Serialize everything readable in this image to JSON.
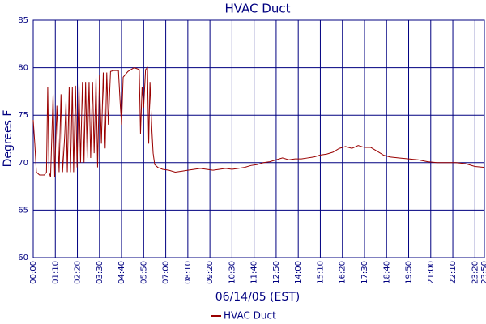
{
  "chart_data": {
    "type": "line",
    "title": "HVAC Duct",
    "x_label": "06/14/05 (EST)",
    "y_label": "Degrees F",
    "xlim": [
      0,
      1430
    ],
    "xticks": [
      {
        "value": 0,
        "label": "00:00"
      },
      {
        "value": 70,
        "label": "01:10"
      },
      {
        "value": 140,
        "label": "02:20"
      },
      {
        "value": 210,
        "label": "03:30"
      },
      {
        "value": 280,
        "label": "04:40"
      },
      {
        "value": 350,
        "label": "05:50"
      },
      {
        "value": 420,
        "label": "07:00"
      },
      {
        "value": 490,
        "label": "08:10"
      },
      {
        "value": 560,
        "label": "09:20"
      },
      {
        "value": 630,
        "label": "10:30"
      },
      {
        "value": 700,
        "label": "11:40"
      },
      {
        "value": 770,
        "label": "12:50"
      },
      {
        "value": 840,
        "label": "14:00"
      },
      {
        "value": 910,
        "label": "15:10"
      },
      {
        "value": 980,
        "label": "16:20"
      },
      {
        "value": 1050,
        "label": "17:30"
      },
      {
        "value": 1120,
        "label": "18:40"
      },
      {
        "value": 1190,
        "label": "19:50"
      },
      {
        "value": 1260,
        "label": "21:00"
      },
      {
        "value": 1330,
        "label": "22:10"
      },
      {
        "value": 1400,
        "label": "23:20"
      },
      {
        "value": 1430,
        "label": "23:50"
      }
    ],
    "ylim": [
      60,
      85
    ],
    "yticks": [
      60,
      65,
      70,
      75,
      80,
      85
    ],
    "grid": true,
    "legend": "bottom",
    "x": [
      0,
      5,
      10,
      20,
      35,
      42,
      46,
      50,
      55,
      63,
      68,
      75,
      82,
      88,
      93,
      100,
      104,
      108,
      114,
      118,
      124,
      128,
      134,
      139,
      145,
      150,
      156,
      161,
      166,
      171,
      177,
      182,
      188,
      193,
      199,
      204,
      210,
      216,
      222,
      228,
      233,
      238,
      245,
      255,
      270,
      276,
      280,
      285,
      300,
      320,
      336,
      340,
      345,
      350,
      356,
      362,
      366,
      370,
      376,
      380,
      385,
      395,
      410,
      430,
      450,
      470,
      490,
      510,
      530,
      550,
      570,
      590,
      610,
      630,
      650,
      670,
      690,
      710,
      730,
      750,
      770,
      790,
      810,
      830,
      850,
      870,
      890,
      910,
      930,
      950,
      970,
      990,
      1010,
      1030,
      1050,
      1070,
      1090,
      1110,
      1130,
      1160,
      1190,
      1220,
      1250,
      1280,
      1310,
      1340,
      1370,
      1400,
      1430
    ],
    "series": [
      {
        "name": "HVAC Duct",
        "color": "#990000",
        "values": [
          74.5,
          72,
          69,
          68.7,
          68.7,
          69,
          78,
          69,
          68.5,
          77.2,
          68.5,
          76,
          69,
          77.2,
          69,
          73,
          76.5,
          69,
          78,
          69,
          78,
          69,
          78.1,
          69.5,
          78.3,
          70,
          78.5,
          70,
          78.5,
          70.5,
          78.5,
          70.5,
          78.5,
          71,
          79,
          69.5,
          79.2,
          72,
          79.5,
          71.5,
          79.5,
          74,
          79.6,
          79.7,
          79.7,
          76,
          74,
          79,
          79.6,
          80,
          79.8,
          73,
          78,
          75.8,
          79.8,
          80,
          72,
          78.5,
          73.5,
          71,
          69.8,
          69.5,
          69.3,
          69.2,
          69,
          69.1,
          69.2,
          69.3,
          69.4,
          69.3,
          69.2,
          69.3,
          69.4,
          69.3,
          69.4,
          69.5,
          69.7,
          69.8,
          70,
          70.1,
          70.3,
          70.5,
          70.3,
          70.4,
          70.4,
          70.5,
          70.6,
          70.8,
          70.9,
          71.1,
          71.5,
          71.7,
          71.5,
          71.8,
          71.6,
          71.6,
          71.2,
          70.8,
          70.6,
          70.5,
          70.4,
          70.3,
          70.1,
          70,
          70,
          70,
          69.9,
          69.6,
          69.5
        ]
      }
    ]
  }
}
